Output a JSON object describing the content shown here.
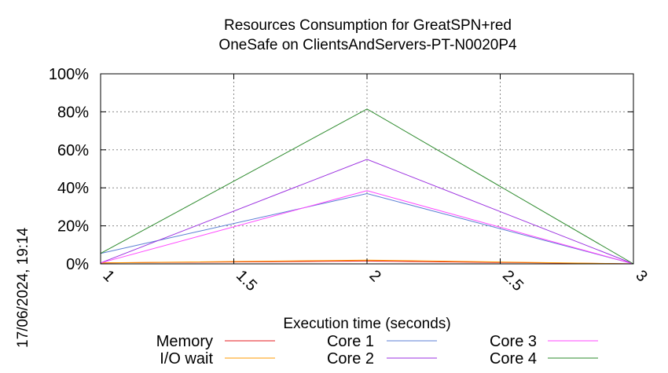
{
  "timestamp": "17/06/2024, 19:14",
  "chart_data": {
    "type": "line",
    "title": "Resources Consumption for GreatSPN+red",
    "subtitle": "OneSafe on ClientsAndServers-PT-N0020P4",
    "xlabel": "Execution time (seconds)",
    "ylabel": "",
    "xlim": [
      1,
      3
    ],
    "ylim": [
      0,
      100
    ],
    "x_ticks": [
      {
        "value": 1,
        "label": "1"
      },
      {
        "value": 1.5,
        "label": "1.5"
      },
      {
        "value": 2,
        "label": "2"
      },
      {
        "value": 2.5,
        "label": "2.5"
      },
      {
        "value": 3,
        "label": "3"
      }
    ],
    "y_ticks": [
      {
        "value": 0,
        "label": "0%"
      },
      {
        "value": 20,
        "label": "20%"
      },
      {
        "value": 40,
        "label": "40%"
      },
      {
        "value": 60,
        "label": "60%"
      },
      {
        "value": 80,
        "label": "80%"
      },
      {
        "value": 100,
        "label": "100%"
      }
    ],
    "grid": true,
    "legend_position": "bottom",
    "x": [
      1,
      2,
      3
    ],
    "series": [
      {
        "name": "Memory",
        "color": "#e41a1c",
        "values": [
          0.5,
          1.5,
          0
        ]
      },
      {
        "name": "I/O wait",
        "color": "#ff9900",
        "values": [
          0.5,
          2.0,
          0
        ]
      },
      {
        "name": "Core 1",
        "color": "#5b7fd4",
        "values": [
          5.5,
          37,
          0
        ]
      },
      {
        "name": "Core 2",
        "color": "#9b30e0",
        "values": [
          0.5,
          55,
          0
        ]
      },
      {
        "name": "Core 3",
        "color": "#ff44ff",
        "values": [
          0.5,
          38.5,
          0
        ]
      },
      {
        "name": "Core 4",
        "color": "#2e8b2e",
        "values": [
          5.5,
          81.5,
          0
        ]
      }
    ]
  }
}
